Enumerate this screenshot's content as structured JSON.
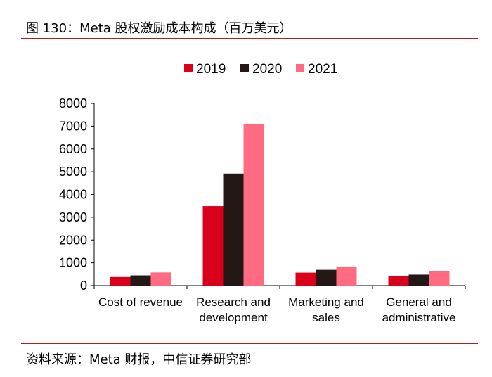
{
  "figure_title": "图 130：Meta 股权激励成本构成（百万美元）",
  "source_note": "资料来源：Meta 财报，中信证券研究部",
  "colors": {
    "rule": "#b71c1c",
    "series": [
      "#d9001b",
      "#231815",
      "#ff6b81"
    ]
  },
  "chart_data": {
    "type": "bar",
    "categories": [
      [
        "Cost of revenue"
      ],
      [
        "Research and",
        "development"
      ],
      [
        "Marketing and",
        "sales"
      ],
      [
        "General and",
        "administrative"
      ]
    ],
    "series": [
      {
        "name": "2019",
        "values": [
          377,
          3488,
          569,
          402
        ]
      },
      {
        "name": "2020",
        "values": [
          447,
          4918,
          691,
          480
        ]
      },
      {
        "name": "2021",
        "values": [
          577,
          7106,
          837,
          644
        ]
      }
    ],
    "yticks": [
      "0",
      "1000",
      "2000",
      "3000",
      "4000",
      "5000",
      "6000",
      "7000",
      "8000"
    ],
    "ylim": [
      0,
      8000
    ],
    "legend_position": "top",
    "grid": false
  }
}
